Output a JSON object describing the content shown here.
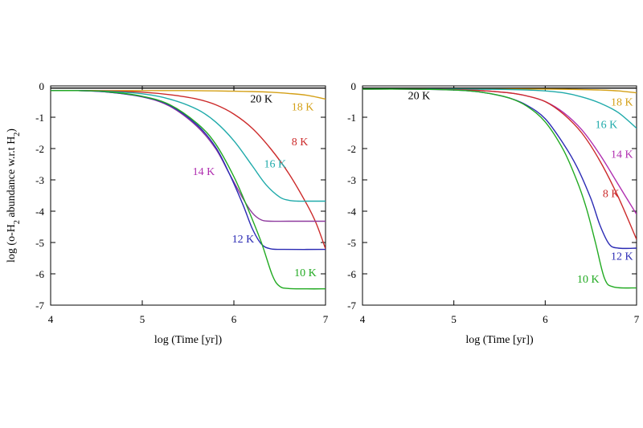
{
  "chart_data": [
    {
      "type": "line",
      "title": "",
      "xlabel": "log (Time [yr])",
      "ylabel": "log (o-H2 abundance w.r.t H2)",
      "ylabel_parts": [
        "log (o-H",
        "2",
        " abundance w.r.t H",
        "2",
        ")"
      ],
      "xlim": [
        4,
        7
      ],
      "ylim": [
        -7,
        0
      ],
      "xticks": [
        "4",
        "5",
        "6",
        "7"
      ],
      "yticks": [
        "0",
        "-1",
        "-2",
        "-3",
        "-4",
        "-5",
        "-6",
        "-7"
      ],
      "grid": false,
      "series": [
        {
          "name": "20 K",
          "color": "#000000",
          "x": [
            4,
            4.5,
            5,
            5.5,
            6,
            6.5,
            7
          ],
          "y": [
            -0.07,
            -0.07,
            -0.07,
            -0.07,
            -0.07,
            -0.07,
            -0.07
          ]
        },
        {
          "name": "18 K",
          "color": "#d4a017",
          "x": [
            4,
            4.5,
            5,
            5.5,
            5.8,
            6,
            6.2,
            6.4,
            6.6,
            6.8,
            7
          ],
          "y": [
            -0.15,
            -0.15,
            -0.15,
            -0.15,
            -0.16,
            -0.17,
            -0.18,
            -0.2,
            -0.24,
            -0.3,
            -0.42
          ]
        },
        {
          "name": "8 K",
          "color": "#cc2a2a",
          "x": [
            4,
            4.3,
            4.6,
            5,
            5.3,
            5.6,
            5.8,
            6,
            6.2,
            6.4,
            6.6,
            6.8,
            6.9,
            7
          ],
          "y": [
            -0.15,
            -0.15,
            -0.16,
            -0.2,
            -0.28,
            -0.42,
            -0.6,
            -0.9,
            -1.35,
            -2.0,
            -2.8,
            -3.8,
            -4.4,
            -5.2
          ]
        },
        {
          "name": "16 K",
          "color": "#1faaaa",
          "x": [
            4,
            4.3,
            4.6,
            5,
            5.3,
            5.6,
            5.8,
            6,
            6.2,
            6.35,
            6.5,
            6.6,
            6.7,
            6.8,
            7
          ],
          "y": [
            -0.15,
            -0.15,
            -0.17,
            -0.25,
            -0.42,
            -0.75,
            -1.15,
            -1.75,
            -2.55,
            -3.15,
            -3.55,
            -3.65,
            -3.68,
            -3.68,
            -3.68
          ]
        },
        {
          "name": "14 K",
          "color": "#8e3a9e",
          "x": [
            4,
            4.3,
            4.6,
            5,
            5.3,
            5.6,
            5.8,
            5.95,
            6.1,
            6.2,
            6.3,
            6.4,
            6.6,
            7
          ],
          "y": [
            -0.15,
            -0.15,
            -0.19,
            -0.35,
            -0.65,
            -1.3,
            -2.0,
            -2.8,
            -3.6,
            -4.05,
            -4.28,
            -4.32,
            -4.32,
            -4.32
          ]
        },
        {
          "name": "12 K",
          "color": "#2b2bb4",
          "x": [
            4,
            4.3,
            4.6,
            5,
            5.3,
            5.6,
            5.8,
            5.95,
            6.1,
            6.2,
            6.3,
            6.4,
            6.55,
            7
          ],
          "y": [
            -0.15,
            -0.15,
            -0.19,
            -0.34,
            -0.62,
            -1.25,
            -1.95,
            -2.8,
            -3.8,
            -4.55,
            -5.05,
            -5.2,
            -5.22,
            -5.22
          ]
        },
        {
          "name": "10 K",
          "color": "#22aa22",
          "x": [
            4,
            4.3,
            4.6,
            5,
            5.3,
            5.6,
            5.8,
            6,
            6.15,
            6.3,
            6.42,
            6.5,
            6.6,
            6.8,
            7
          ],
          "y": [
            -0.15,
            -0.15,
            -0.18,
            -0.33,
            -0.6,
            -1.2,
            -1.85,
            -2.9,
            -3.9,
            -5.0,
            -6.05,
            -6.4,
            -6.47,
            -6.48,
            -6.48
          ]
        }
      ]
    },
    {
      "type": "line",
      "title": "",
      "xlabel": "log (Time [yr])",
      "ylabel": "",
      "xlim": [
        4,
        7
      ],
      "ylim": [
        -7,
        0
      ],
      "xticks": [
        "4",
        "5",
        "6",
        "7"
      ],
      "yticks": [
        "0",
        "-1",
        "-2",
        "-3",
        "-4",
        "-5",
        "-6",
        "-7"
      ],
      "grid": false,
      "series": [
        {
          "name": "20 K",
          "color": "#000000",
          "x": [
            4,
            4.5,
            5,
            5.5,
            6,
            6.5,
            7
          ],
          "y": [
            -0.07,
            -0.07,
            -0.07,
            -0.07,
            -0.07,
            -0.07,
            -0.07
          ]
        },
        {
          "name": "18 K",
          "color": "#d4a017",
          "x": [
            4,
            4.5,
            5,
            5.5,
            6,
            6.3,
            6.6,
            6.8,
            7
          ],
          "y": [
            -0.1,
            -0.1,
            -0.1,
            -0.1,
            -0.1,
            -0.11,
            -0.13,
            -0.16,
            -0.22
          ]
        },
        {
          "name": "16 K",
          "color": "#1faaaa",
          "x": [
            4,
            4.5,
            5,
            5.5,
            5.8,
            6,
            6.2,
            6.4,
            6.6,
            6.8,
            7
          ],
          "y": [
            -0.1,
            -0.1,
            -0.1,
            -0.11,
            -0.13,
            -0.16,
            -0.22,
            -0.35,
            -0.55,
            -0.85,
            -1.35
          ]
        },
        {
          "name": "14 K",
          "color": "#b02fb0",
          "x": [
            4,
            4.5,
            5,
            5.3,
            5.6,
            5.8,
            6,
            6.2,
            6.4,
            6.6,
            6.8,
            7
          ],
          "y": [
            -0.1,
            -0.1,
            -0.12,
            -0.15,
            -0.22,
            -0.32,
            -0.5,
            -0.85,
            -1.4,
            -2.2,
            -3.15,
            -4.1
          ]
        },
        {
          "name": "8 K",
          "color": "#cc2a2a",
          "x": [
            4,
            4.5,
            5,
            5.3,
            5.6,
            5.8,
            6,
            6.2,
            6.4,
            6.6,
            6.8,
            7
          ],
          "y": [
            -0.1,
            -0.1,
            -0.12,
            -0.15,
            -0.22,
            -0.32,
            -0.5,
            -0.9,
            -1.5,
            -2.4,
            -3.55,
            -4.9
          ]
        },
        {
          "name": "12 K",
          "color": "#2b2bb4",
          "x": [
            4,
            4.5,
            5,
            5.3,
            5.6,
            5.8,
            6,
            6.2,
            6.35,
            6.5,
            6.6,
            6.7,
            6.8,
            7
          ],
          "y": [
            -0.1,
            -0.1,
            -0.13,
            -0.2,
            -0.38,
            -0.62,
            -1.05,
            -1.85,
            -2.6,
            -3.6,
            -4.45,
            -5.05,
            -5.18,
            -5.18
          ]
        },
        {
          "name": "10 K",
          "color": "#22aa22",
          "x": [
            4,
            4.5,
            5,
            5.3,
            5.6,
            5.8,
            6,
            6.2,
            6.35,
            6.45,
            6.55,
            6.65,
            6.75,
            7
          ],
          "y": [
            -0.1,
            -0.1,
            -0.13,
            -0.2,
            -0.38,
            -0.65,
            -1.15,
            -2.05,
            -3.05,
            -3.9,
            -5.0,
            -6.15,
            -6.42,
            -6.45
          ]
        }
      ]
    }
  ],
  "annotations": [
    [
      {
        "text": "20 K",
        "color": "#000000",
        "x": 6.3,
        "y": -0.52
      },
      {
        "text": "18 K",
        "color": "#d4a017",
        "x": 6.75,
        "y": -0.78
      },
      {
        "text": "8 K",
        "color": "#cc2a2a",
        "x": 6.72,
        "y": -1.9
      },
      {
        "text": "16 K",
        "color": "#1faaaa",
        "x": 6.45,
        "y": -2.6
      },
      {
        "text": "14 K",
        "color": "#b02fb0",
        "x": 5.67,
        "y": -2.85
      },
      {
        "text": "12 K",
        "color": "#2b2bb4",
        "x": 6.1,
        "y": -5.0
      },
      {
        "text": "10 K",
        "color": "#22aa22",
        "x": 6.78,
        "y": -6.08
      }
    ],
    [
      {
        "text": "20 K",
        "color": "#000000",
        "x": 4.62,
        "y": -0.42
      },
      {
        "text": "18 K",
        "color": "#d4a017",
        "x": 6.84,
        "y": -0.63
      },
      {
        "text": "16 K",
        "color": "#1faaaa",
        "x": 6.67,
        "y": -1.35
      },
      {
        "text": "14 K",
        "color": "#b02fb0",
        "x": 6.84,
        "y": -2.3
      },
      {
        "text": "8 K",
        "color": "#cc2a2a",
        "x": 6.72,
        "y": -3.55
      },
      {
        "text": "12 K",
        "color": "#2b2bb4",
        "x": 6.84,
        "y": -5.55
      },
      {
        "text": "10 K",
        "color": "#22aa22",
        "x": 6.47,
        "y": -6.28
      }
    ]
  ]
}
